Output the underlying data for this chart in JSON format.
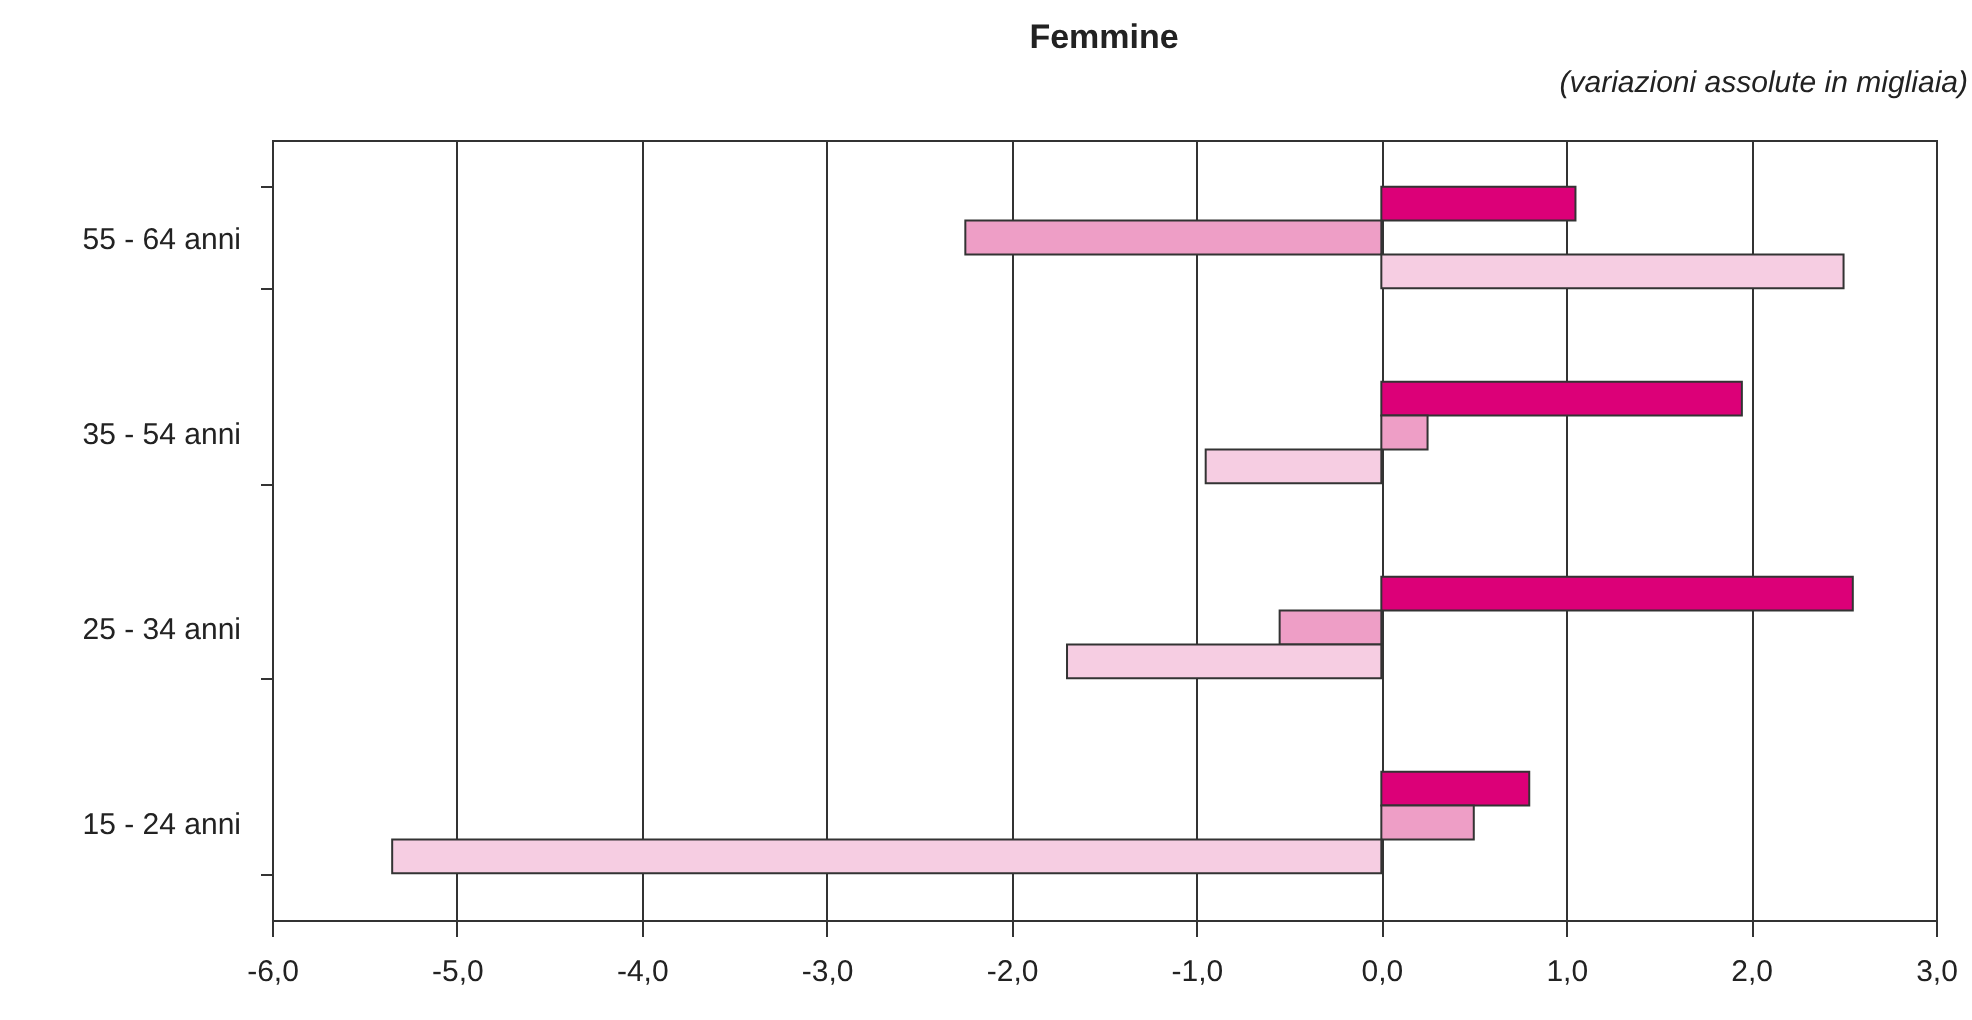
{
  "chart_data": {
    "type": "bar",
    "orientation": "horizontal",
    "title": "Femmine",
    "annotations": [
      "(variazioni assolute in migliaia)"
    ],
    "categories": [
      "55 - 64 anni",
      "35 - 54 anni",
      "25 - 34 anni",
      "15 - 24 anni"
    ],
    "series": [
      {
        "color": "#dc0078",
        "values": [
          1.05,
          1.95,
          2.55,
          0.8
        ]
      },
      {
        "color": "#ee9ec6",
        "values": [
          -2.25,
          0.25,
          -0.55,
          0.5
        ]
      },
      {
        "color": "#f6cde2",
        "values": [
          2.5,
          -0.95,
          -1.7,
          -5.35
        ]
      }
    ],
    "xlim": [
      -6,
      3
    ],
    "xticks": [
      {
        "value": -6,
        "label": "-6,0"
      },
      {
        "value": -5,
        "label": "-5,0"
      },
      {
        "value": -4,
        "label": "-4,0"
      },
      {
        "value": -3,
        "label": "-3,0"
      },
      {
        "value": -2,
        "label": "-2,0"
      },
      {
        "value": -1,
        "label": "-1,0"
      },
      {
        "value": 0,
        "label": "0,0"
      },
      {
        "value": 1,
        "label": "1,0"
      },
      {
        "value": 2,
        "label": "2,0"
      },
      {
        "value": 3,
        "label": "3,0"
      }
    ],
    "grid": "x"
  }
}
